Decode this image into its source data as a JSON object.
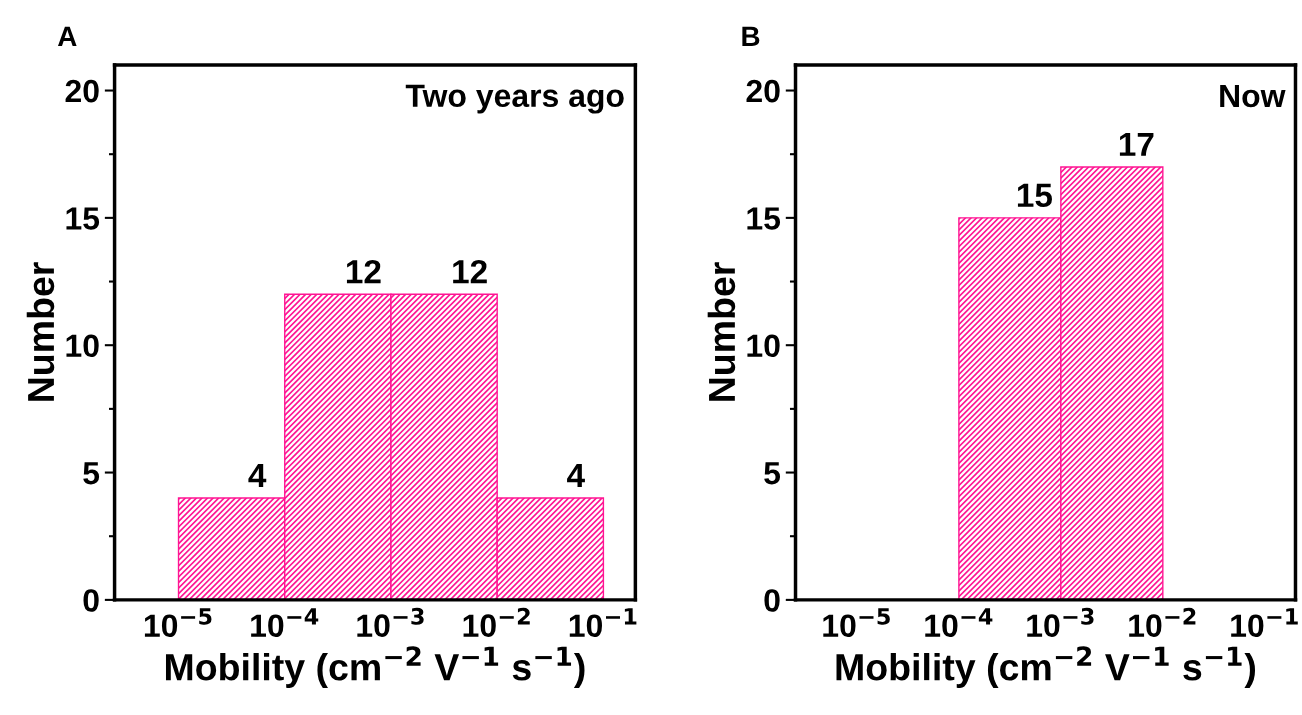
{
  "chart_data": [
    {
      "type": "histogram",
      "title": "Two years ago",
      "xlabel": "Mobility (cm$^{−2}$ V$^{−1}$ s$^{−1}$)",
      "ylabel": "Number",
      "annotations": [
        "A"
      ],
      "log": "x",
      "bins": [
        1e-05,
        0.0001,
        0.001,
        0.01,
        0.1
      ],
      "values": [
        4,
        12,
        12,
        4
      ],
      "color": "#ff1493",
      "data_labels": true,
      "xlim": [
        2.5e-06,
        0.2
      ],
      "ylim": [
        0,
        21
      ],
      "xticks": [
        {
          "value": 1e-05,
          "label": "10$^{−5}$"
        },
        {
          "value": 0.0001,
          "label": "10$^{−4}$"
        },
        {
          "value": 0.001,
          "label": "10$^{−3}$"
        },
        {
          "value": 0.01,
          "label": "10$^{−2}$"
        },
        {
          "value": 0.1,
          "label": "10$^{−1}$"
        }
      ],
      "yticks": [
        0,
        5,
        10,
        15,
        20
      ],
      "grid": false
    },
    {
      "type": "histogram",
      "title": "Now",
      "xlabel": "Mobility (cm$^{−2}$ V$^{−1}$ s$^{−1}$)",
      "ylabel": "Number",
      "annotations": [
        "B"
      ],
      "log": "x",
      "bins": [
        0.0001,
        0.001,
        0.01
      ],
      "values": [
        15,
        17
      ],
      "color": "#ff1493",
      "data_labels": true,
      "xlim": [
        2.5e-06,
        0.2
      ],
      "ylim": [
        0,
        21
      ],
      "xticks": [
        {
          "value": 1e-05,
          "label": "10$^{−5}$"
        },
        {
          "value": 0.0001,
          "label": "10$^{−4}$"
        },
        {
          "value": 0.001,
          "label": "10$^{−3}$"
        },
        {
          "value": 0.01,
          "label": "10$^{−2}$"
        },
        {
          "value": 0.1,
          "label": "10$^{−1}$"
        }
      ],
      "yticks": [
        0,
        5,
        10,
        15,
        20
      ],
      "grid": false
    }
  ]
}
